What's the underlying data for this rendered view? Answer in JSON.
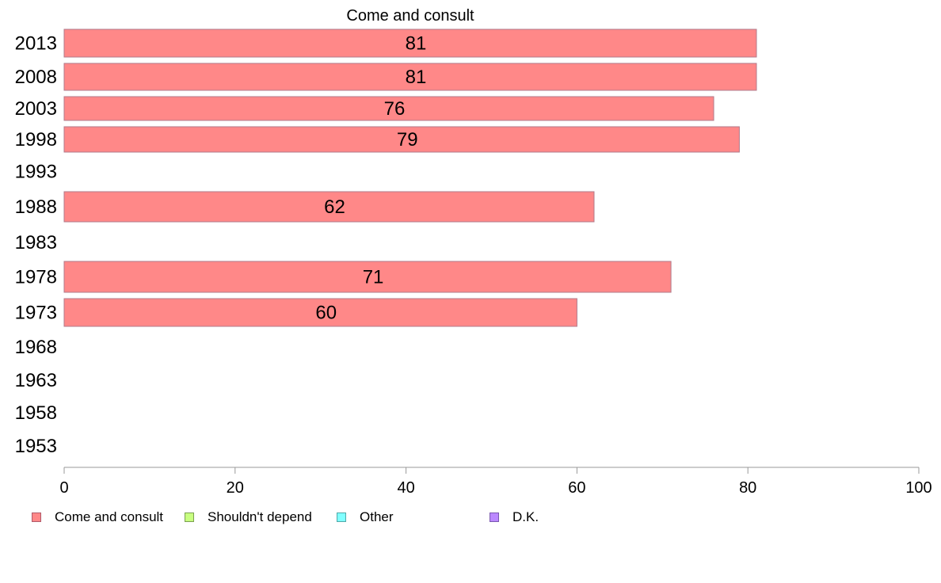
{
  "chart_data": {
    "type": "bar",
    "orientation": "horizontal",
    "title": "Come and consult",
    "categories": [
      "2013",
      "2008",
      "2003",
      "1998",
      "1993",
      "1988",
      "1983",
      "1978",
      "1973",
      "1968",
      "1963",
      "1958",
      "1953"
    ],
    "series": [
      {
        "name": "Come and consult",
        "color": "#ff8888",
        "values": [
          81,
          81,
          76,
          79,
          null,
          62,
          null,
          71,
          60,
          null,
          null,
          null,
          null
        ]
      }
    ],
    "bar_border_color": "#b07a8a",
    "data_labels": [
      "81",
      "81",
      "76",
      "79",
      "",
      "62",
      "",
      "71",
      "60",
      "",
      "",
      "",
      ""
    ],
    "xlim": [
      0,
      100
    ],
    "xticks": [
      0,
      20,
      40,
      60,
      80,
      100
    ],
    "xlabel": "",
    "ylabel": "",
    "grid": false,
    "legend_position": "bottom-left"
  },
  "legend": [
    {
      "label": "Come and consult",
      "color": "#ff8888",
      "border": "#b05a6a"
    },
    {
      "label": "Shouldn't depend",
      "color": "#c8ff80",
      "border": "#7aa050"
    },
    {
      "label": "Other",
      "color": "#80ffff",
      "border": "#50a8a8"
    },
    {
      "label": "D.K.",
      "color": "#bb88ff",
      "border": "#7a58b0"
    }
  ]
}
